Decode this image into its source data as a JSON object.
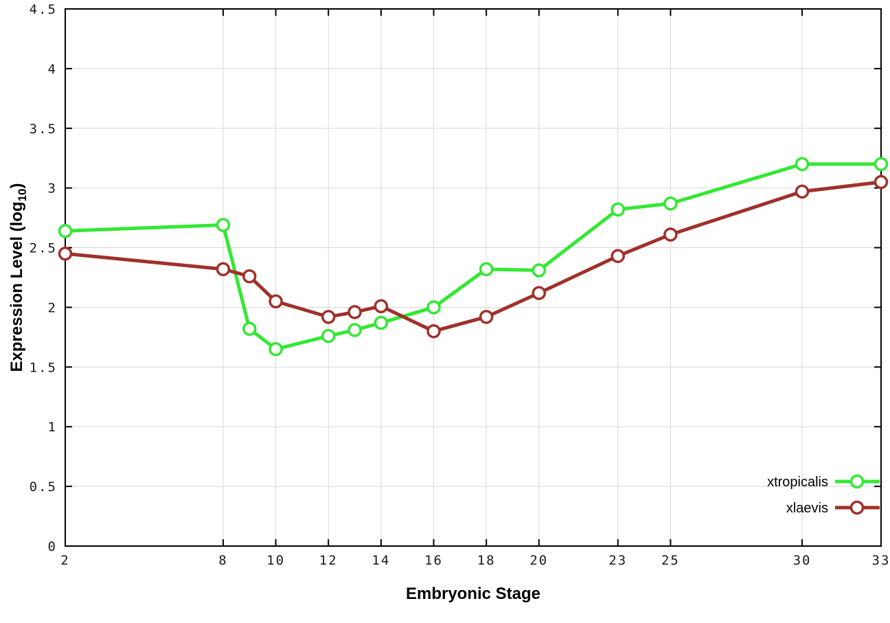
{
  "chart_data": {
    "type": "line",
    "title": "",
    "xlabel": "Embryonic Stage",
    "ylabel": "Expression Level (log10)",
    "ylabel_parts": {
      "main": "Expression Level (log",
      "sub": "10",
      "close": ")"
    },
    "x_range": [
      2,
      33
    ],
    "y_range": [
      0,
      4.5
    ],
    "grid": true,
    "legend_position": "bottom-right",
    "x": [
      2,
      8,
      9,
      10,
      12,
      13,
      14,
      16,
      18,
      20,
      23,
      25,
      30,
      33
    ],
    "x_ticks": [
      2,
      8,
      10,
      12,
      14,
      16,
      18,
      20,
      23,
      25,
      30,
      33
    ],
    "x_tick_labels": [
      "2",
      "8",
      "10",
      "12",
      "14",
      "16",
      "18",
      "20",
      "23",
      "25",
      "30",
      "33"
    ],
    "y_ticks": [
      0,
      0.5,
      1,
      1.5,
      2,
      2.5,
      3,
      3.5,
      4,
      4.5
    ],
    "y_tick_labels": [
      "0",
      "0.5",
      "1",
      "1.5",
      "2",
      "2.5",
      "3",
      "3.5",
      "4",
      "4.5"
    ],
    "series": [
      {
        "name": "xtropicalis",
        "color": "#33e833",
        "values": [
          2.64,
          2.69,
          1.82,
          1.65,
          1.76,
          1.81,
          1.87,
          2.0,
          2.32,
          2.31,
          2.82,
          2.87,
          3.2,
          3.2
        ]
      },
      {
        "name": "xlaevis",
        "color": "#a0302a",
        "values": [
          2.45,
          2.32,
          2.26,
          2.05,
          1.92,
          1.96,
          2.01,
          1.8,
          1.92,
          2.12,
          2.43,
          2.61,
          2.97,
          3.05
        ]
      }
    ]
  },
  "colors": {
    "background": "#ffffff",
    "grid": "#d8d8d8",
    "border": "#000000"
  }
}
